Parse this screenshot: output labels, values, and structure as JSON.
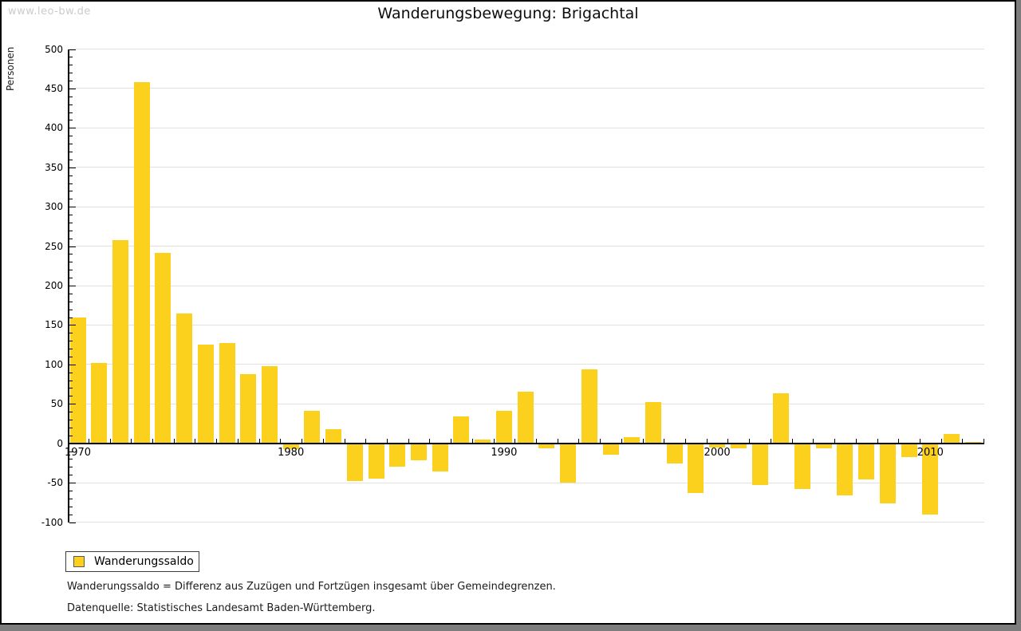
{
  "watermark": "www.leo-bw.de",
  "chart_data": {
    "type": "bar",
    "title": "Wanderungsbewegung: Brigachtal",
    "ylabel": "Personen",
    "xlabel": "",
    "ylim": [
      -100,
      500
    ],
    "ytick_step": 50,
    "ytick_minor_step": 10,
    "grid": true,
    "bar_color": "#FBD11E",
    "grid_color": "#e1e1e1",
    "x": [
      1970,
      1971,
      1972,
      1973,
      1974,
      1975,
      1976,
      1977,
      1978,
      1979,
      1980,
      1981,
      1982,
      1983,
      1984,
      1985,
      1986,
      1987,
      1988,
      1989,
      1990,
      1991,
      1992,
      1993,
      1994,
      1995,
      1996,
      1997,
      1998,
      1999,
      2000,
      2001,
      2002,
      2003,
      2004,
      2005,
      2006,
      2007,
      2008,
      2009,
      2010,
      2011,
      2012
    ],
    "xtick_labels": [
      "1970",
      "1980",
      "1990",
      "2000",
      "2010"
    ],
    "series": [
      {
        "name": "Wanderungssaldo",
        "values": [
          160,
          102,
          258,
          458,
          241,
          165,
          125,
          127,
          88,
          98,
          -6,
          41,
          18,
          -47,
          -44,
          -29,
          -21,
          -35,
          34,
          5,
          41,
          65,
          -5,
          -49,
          94,
          -13,
          8,
          52,
          -25,
          -62,
          -4,
          -5,
          -52,
          63,
          -57,
          -5,
          -65,
          -45,
          -75,
          -17,
          -89,
          12,
          2
        ]
      }
    ],
    "legend_position": "bottom-left"
  },
  "footnotes": [
    "Wanderungssaldo = Differenz aus Zuzügen und Fortzügen insgesamt über Gemeindegrenzen.",
    "Datenquelle: Statistisches Landesamt Baden-Württemberg."
  ]
}
